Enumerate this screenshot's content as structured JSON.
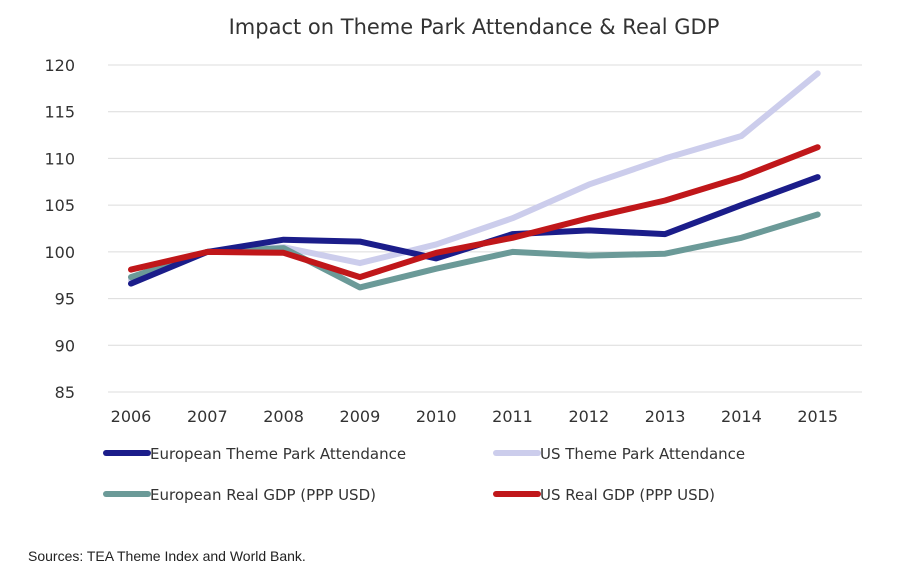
{
  "chart_data": {
    "type": "line",
    "title": "Impact on Theme Park Attendance & Real GDP",
    "x": [
      "2006",
      "2007",
      "2008",
      "2009",
      "2010",
      "2011",
      "2012",
      "2013",
      "2014",
      "2015"
    ],
    "ylim": [
      85,
      120
    ],
    "yticks": [
      "85",
      "90",
      "95",
      "100",
      "105",
      "110",
      "115",
      "120"
    ],
    "grid": true,
    "legend_position": "bottom",
    "series": [
      {
        "name": "European Theme Park Attendance",
        "color": "#1b1d8a",
        "values": [
          96.6,
          100.0,
          101.3,
          101.1,
          99.3,
          101.9,
          102.3,
          101.9,
          105.0,
          108.0
        ]
      },
      {
        "name": "US Theme Park Attendance",
        "color": "#cccdec",
        "values": [
          97.0,
          100.0,
          100.5,
          98.8,
          100.8,
          103.6,
          107.2,
          110.0,
          112.4,
          119.1
        ]
      },
      {
        "name": "European Real GDP (PPP USD)",
        "color": "#6b9a98",
        "values": [
          97.3,
          100.0,
          100.4,
          96.2,
          98.2,
          100.0,
          99.6,
          99.8,
          101.5,
          104.0
        ]
      },
      {
        "name": "US Real GDP (PPP USD)",
        "color": "#c0171a",
        "values": [
          98.1,
          100.0,
          99.9,
          97.3,
          99.9,
          101.5,
          103.6,
          105.5,
          108.0,
          111.2
        ]
      }
    ]
  },
  "footer": {
    "source": "Sources: TEA Theme Index and World Bank."
  }
}
